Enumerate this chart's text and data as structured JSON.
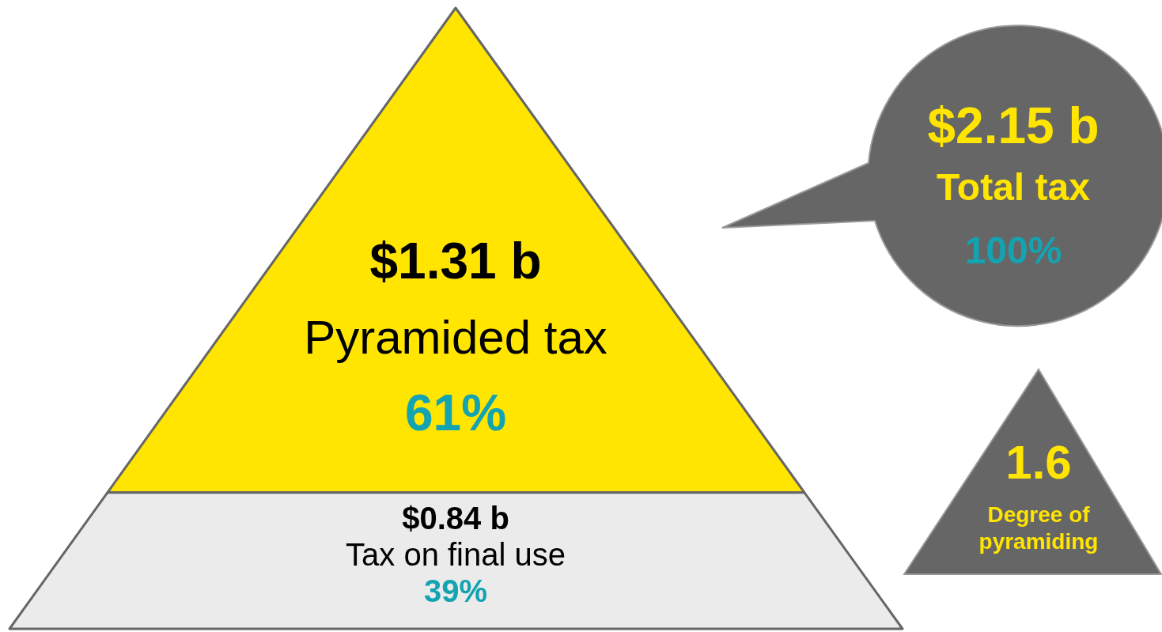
{
  "chart_data": {
    "type": "other",
    "categories": [
      "Pyramided tax",
      "Tax on final use"
    ],
    "values": [
      1.31,
      0.84
    ],
    "value_labels": [
      "$1.31 b",
      "$0.84 b"
    ],
    "colors": [
      "#ffe500",
      "#ebebeb"
    ],
    "annotations": [
      "61%",
      "39%",
      "$2.15 b",
      "Total tax",
      "100%",
      "1.6",
      "Degree of pyramiding"
    ]
  }
}
